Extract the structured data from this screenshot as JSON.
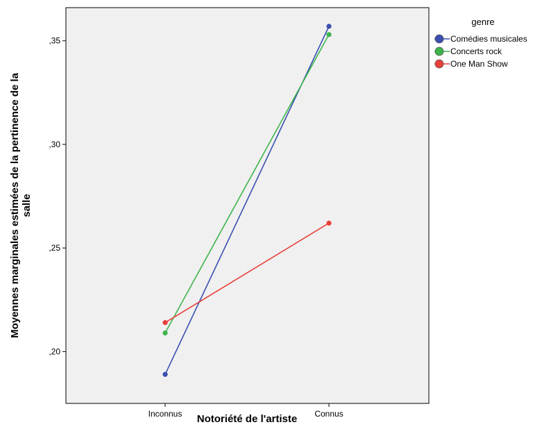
{
  "chart_data": {
    "type": "line",
    "categories": [
      "Inconnus",
      "Connus"
    ],
    "xlabel": "Notoriété de l'artiste",
    "ylabel_lines": [
      "Moyennes marginales estimées de la pertinence de la",
      "salle"
    ],
    "ylim": [
      0.175,
      0.366
    ],
    "yticks": [
      {
        "value": 0.2,
        "label": ",20"
      },
      {
        "value": 0.25,
        "label": ",25"
      },
      {
        "value": 0.3,
        "label": ",30"
      },
      {
        "value": 0.35,
        "label": ",35"
      }
    ],
    "grid": false,
    "legend": {
      "title": "genre",
      "placement": "right"
    },
    "series": [
      {
        "name": "Comédies musicales",
        "values": [
          0.189,
          0.357
        ],
        "color": "#3a4fb0"
      },
      {
        "name": "Concerts rock",
        "values": [
          0.209,
          0.353
        ],
        "color": "#3cb44b"
      },
      {
        "name": "One Man Show",
        "values": [
          0.214,
          0.262
        ],
        "color": "#e8403a"
      }
    ]
  },
  "colors": {
    "plot_background": "#f0f0f0",
    "axis": "#000000"
  }
}
